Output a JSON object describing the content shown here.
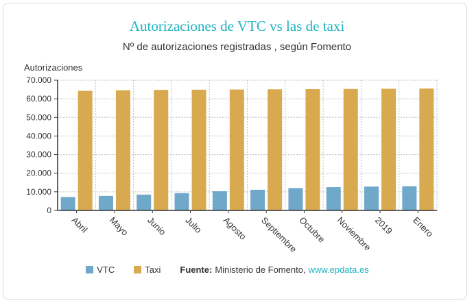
{
  "chart_data": {
    "type": "bar",
    "title": "Autorizaciones de VTC vs las de taxi",
    "subtitle": "Nº de autorizaciones registradas , según Fomento",
    "ylabel": "Autorizaciones",
    "xlabel": "",
    "ylim": [
      0,
      70000
    ],
    "yticks": [
      0,
      10000,
      20000,
      30000,
      40000,
      50000,
      60000,
      70000
    ],
    "ytick_labels": [
      "0",
      "10.000",
      "20.000",
      "30.000",
      "40.000",
      "50.000",
      "60.000",
      "70.000"
    ],
    "categories": [
      "Abril",
      "Mayo",
      "Junio",
      "Julio",
      "Agosto",
      "Septiembre",
      "Octubre",
      "Noviembre",
      "2019",
      "Enero"
    ],
    "series": [
      {
        "name": "VTC",
        "color": "#6fa8c9",
        "values": [
          7200,
          7800,
          8500,
          9300,
          10300,
          11100,
          12000,
          12500,
          12800,
          13000
        ]
      },
      {
        "name": "Taxi",
        "color": "#d9a94f",
        "values": [
          64300,
          64600,
          64800,
          64900,
          65000,
          65100,
          65200,
          65300,
          65400,
          65500
        ]
      }
    ],
    "grid": true,
    "legend_position": "bottom-center"
  },
  "source": {
    "label": "Fuente:",
    "text": "Ministerio de Fomento,",
    "link": "www.epdata.es"
  }
}
